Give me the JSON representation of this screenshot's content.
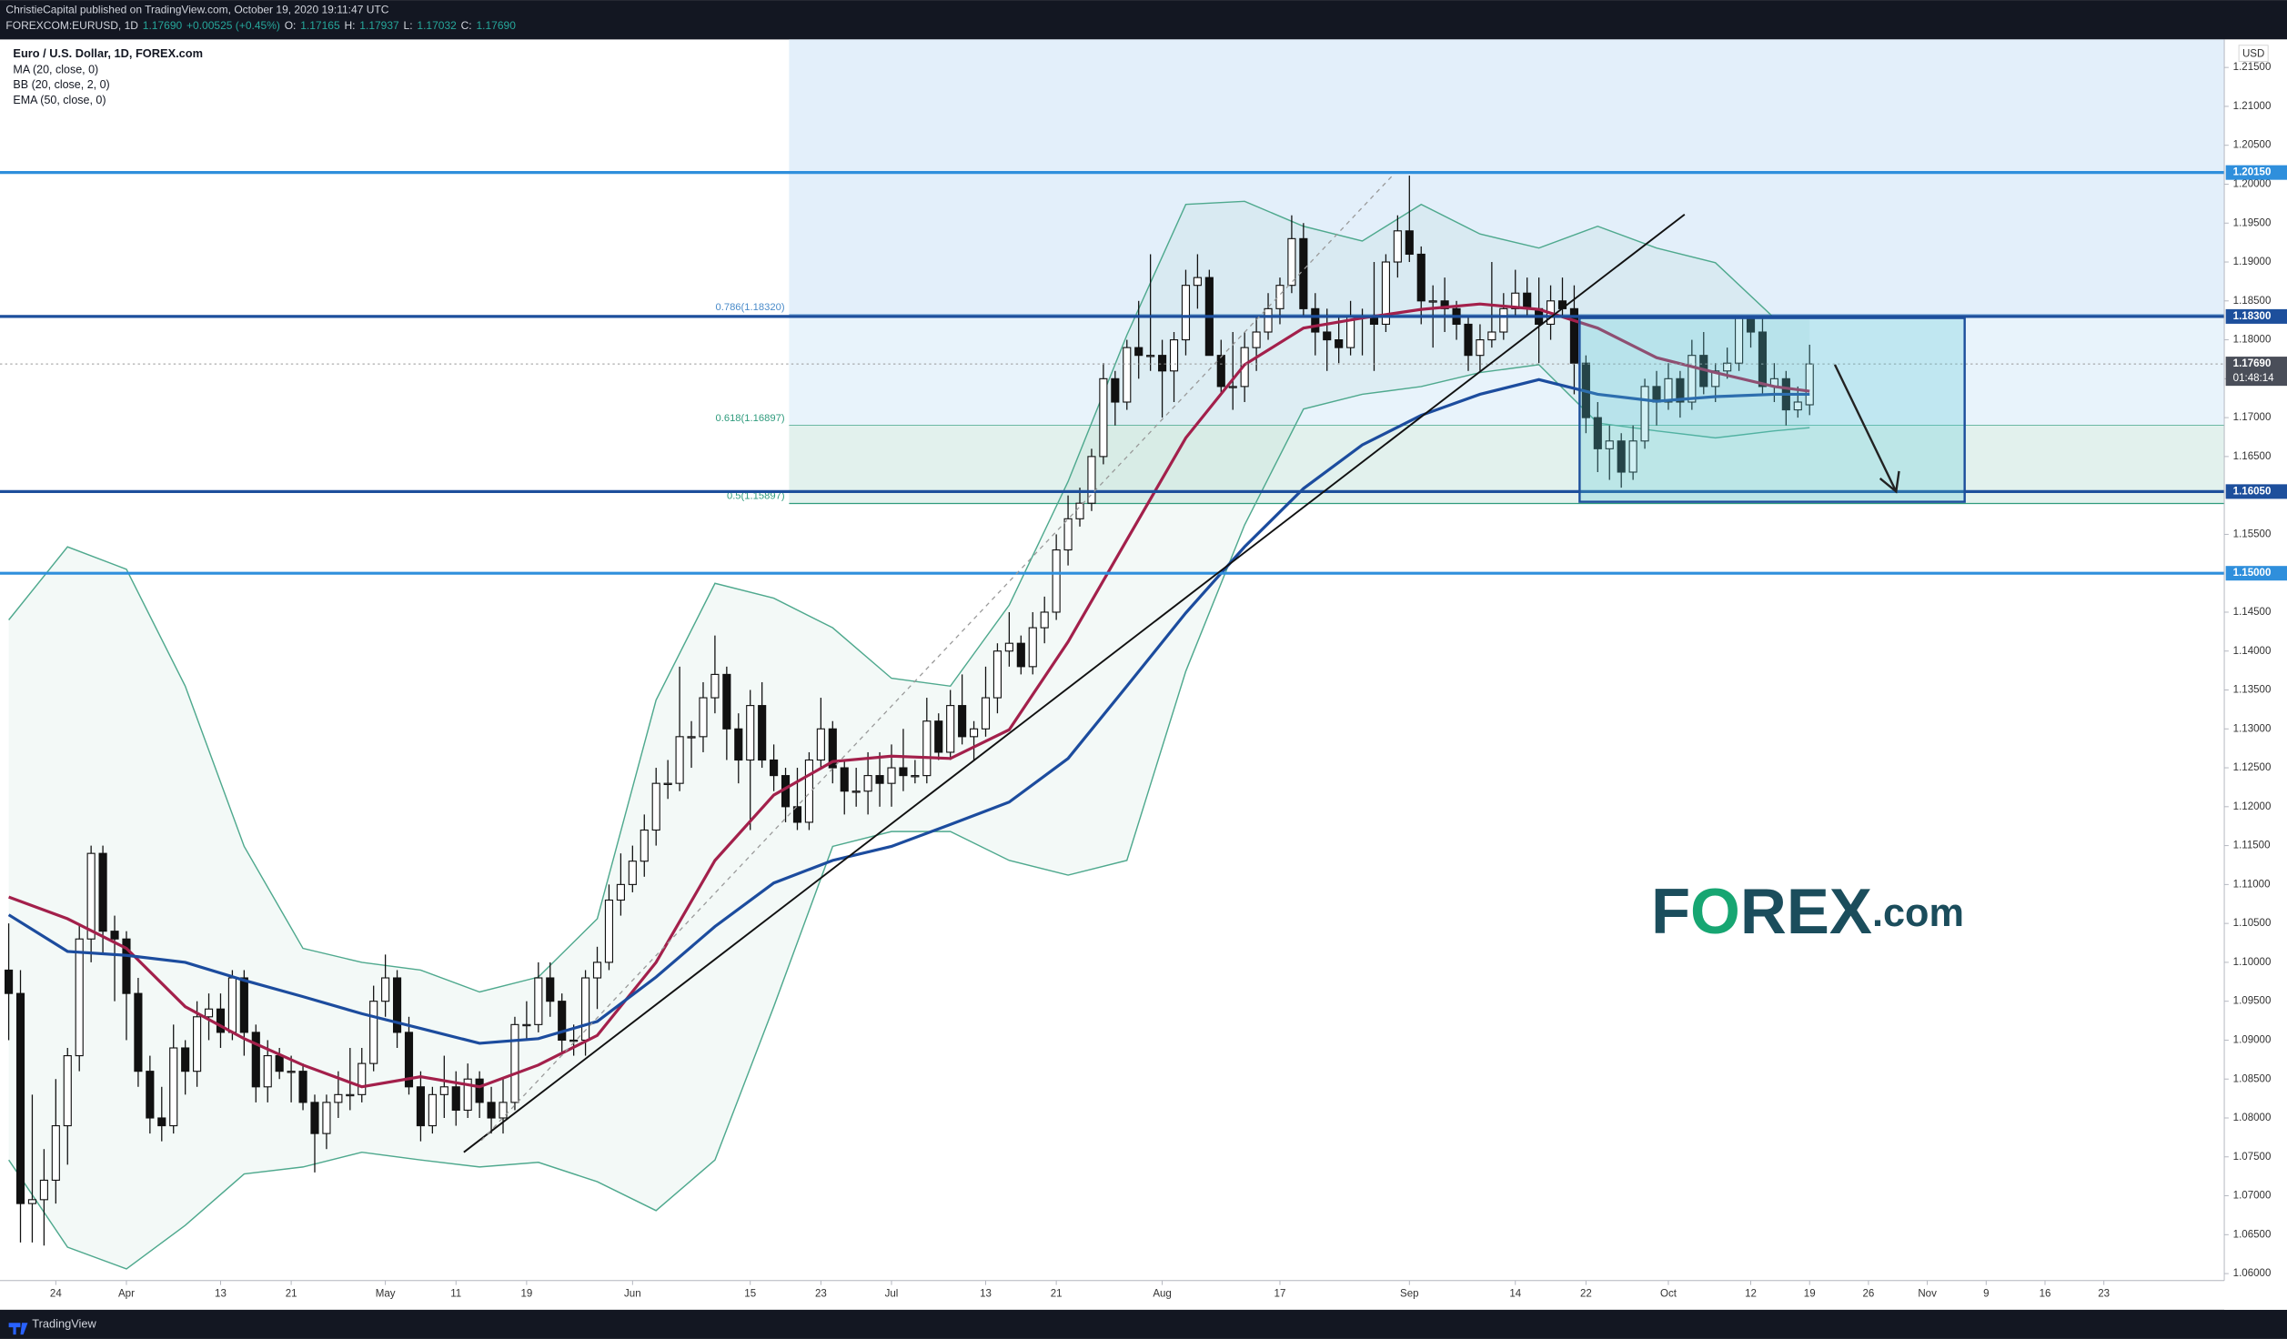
{
  "header": {
    "author": "ChristieCapital published on TradingView.com, October 19, 2020 19:11:47 UTC",
    "quote": [
      "FOREXCOM:EURUSD, 1D",
      "1.17690",
      "+0.00525 (+0.45%)",
      "O:",
      "1.17165",
      "H:",
      "1.17937",
      "L:",
      "1.17032",
      "C:",
      "1.17690"
    ]
  },
  "legend": {
    "instrument": "Euro / U.S. Dollar, 1D, FOREX.com"
  },
  "logo": [
    "F",
    "O",
    "REX",
    ".com"
  ],
  "footer": "TradingView",
  "chart_data": {
    "type": "candlestick",
    "currency": "USD",
    "xlim": [
      -0.74,
      188.23
    ],
    "ylim": [
      1.0591,
      1.2186
    ],
    "xticks": [
      {
        "value": 4,
        "label": "24"
      },
      {
        "value": 10,
        "label": "Apr"
      },
      {
        "value": 18,
        "label": "13"
      },
      {
        "value": 24,
        "label": "21"
      },
      {
        "value": 32,
        "label": "May"
      },
      {
        "value": 38,
        "label": "11"
      },
      {
        "value": 44,
        "label": "19"
      },
      {
        "value": 53,
        "label": "Jun"
      },
      {
        "value": 63,
        "label": "15"
      },
      {
        "value": 69,
        "label": "23"
      },
      {
        "value": 75,
        "label": "Jul"
      },
      {
        "value": 83,
        "label": "13"
      },
      {
        "value": 89,
        "label": "21"
      },
      {
        "value": 98,
        "label": "Aug"
      },
      {
        "value": 108,
        "label": "17"
      },
      {
        "value": 119,
        "label": "Sep"
      },
      {
        "value": 128,
        "label": "14"
      },
      {
        "value": 134,
        "label": "22"
      },
      {
        "value": 141,
        "label": "Oct"
      },
      {
        "value": 148,
        "label": "12"
      },
      {
        "value": 153,
        "label": "19"
      },
      {
        "value": 158,
        "label": "26"
      },
      {
        "value": 163,
        "label": "Nov"
      },
      {
        "value": 168,
        "label": "9"
      },
      {
        "value": 173,
        "label": "16"
      },
      {
        "value": 178,
        "label": "23"
      }
    ],
    "yticks": [
      {
        "value": 1.06,
        "label": "1.06000"
      },
      {
        "value": 1.065,
        "label": "1.06500"
      },
      {
        "value": 1.07,
        "label": "1.07000"
      },
      {
        "value": 1.075,
        "label": "1.07500"
      },
      {
        "value": 1.08,
        "label": "1.08000"
      },
      {
        "value": 1.085,
        "label": "1.08500"
      },
      {
        "value": 1.09,
        "label": "1.09000"
      },
      {
        "value": 1.095,
        "label": "1.09500"
      },
      {
        "value": 1.1,
        "label": "1.10000"
      },
      {
        "value": 1.105,
        "label": "1.10500"
      },
      {
        "value": 1.11,
        "label": "1.11000"
      },
      {
        "value": 1.115,
        "label": "1.11500"
      },
      {
        "value": 1.12,
        "label": "1.12000"
      },
      {
        "value": 1.125,
        "label": "1.12500"
      },
      {
        "value": 1.13,
        "label": "1.13000"
      },
      {
        "value": 1.135,
        "label": "1.13500"
      },
      {
        "value": 1.14,
        "label": "1.14000"
      },
      {
        "value": 1.145,
        "label": "1.14500"
      },
      {
        "value": 1.155,
        "label": "1.15500"
      },
      {
        "value": 1.165,
        "label": "1.16500"
      },
      {
        "value": 1.17,
        "label": "1.17000"
      },
      {
        "value": 1.175,
        "label": "1.17500"
      },
      {
        "value": 1.18,
        "label": "1.18000"
      },
      {
        "value": 1.185,
        "label": "1.18500"
      },
      {
        "value": 1.19,
        "label": "1.19000"
      },
      {
        "value": 1.195,
        "label": "1.19500"
      },
      {
        "value": 1.2,
        "label": "1.20000"
      },
      {
        "value": 1.205,
        "label": "1.20500"
      },
      {
        "value": 1.21,
        "label": "1.21000"
      },
      {
        "value": 1.215,
        "label": "1.21500"
      }
    ],
    "levels": [
      {
        "value": 1.2015,
        "label": "1.20150",
        "color": "#2f8fdc"
      },
      {
        "value": 1.183,
        "label": "1.18300",
        "color": "#1d4f9c"
      },
      {
        "value": 1.1605,
        "label": "1.16050",
        "color": "#1d4f9c"
      },
      {
        "value": 1.15,
        "label": "1.15000",
        "color": "#2f8fdc"
      }
    ],
    "last": {
      "value": 1.1769,
      "label": "1.17690",
      "countdown": "01:48:14"
    },
    "fib": [
      {
        "value": 1.1832,
        "label": "0.786(1.18320)",
        "color": "#4a8bc9",
        "fill": "#e3effa"
      },
      {
        "value": 1.16897,
        "label": "0.618(1.16897)",
        "color": "#2f9b7d",
        "fill": "#e8f3fb"
      },
      {
        "value": 1.15897,
        "label": "0.5(1.15897)",
        "color": "#2f9b7d",
        "fill": "#e2f1ed"
      }
    ],
    "up_color": "#ffffff",
    "down_color": "#111111",
    "overlay_x": [
      0,
      5,
      10,
      15,
      20,
      25,
      30,
      35,
      40,
      45,
      50,
      55,
      60,
      65,
      70,
      75,
      80,
      85,
      90,
      95,
      100,
      105,
      110,
      115,
      120,
      125,
      130,
      135,
      140,
      145,
      150,
      153
    ],
    "overlays": [
      {
        "name": "MA (20, close, 0)",
        "color": "#a3204b",
        "values": [
          1.1084,
          1.1056,
          1.1018,
          1.0943,
          1.0902,
          1.0868,
          1.084,
          1.0853,
          1.084,
          1.0868,
          1.0906,
          1.1,
          1.1131,
          1.1215,
          1.1258,
          1.1265,
          1.1262,
          1.1299,
          1.1412,
          1.1543,
          1.1674,
          1.1768,
          1.1815,
          1.1828,
          1.1839,
          1.1846,
          1.1839,
          1.1815,
          1.1777,
          1.1758,
          1.174,
          1.1734
        ]
      },
      {
        "name": "BB (20, close, 2, 0)",
        "color": "#4fa98e",
        "upper": [
          1.144,
          1.1534,
          1.1505,
          1.1355,
          1.1149,
          1.1018,
          1.1,
          1.099,
          1.0962,
          1.0981,
          1.1056,
          1.1337,
          1.1487,
          1.1468,
          1.143,
          1.1365,
          1.1355,
          1.1459,
          1.1618,
          1.1806,
          1.1974,
          1.1978,
          1.1946,
          1.1927,
          1.1974,
          1.1936,
          1.1918,
          1.1946,
          1.1918,
          1.1899,
          1.1828,
          1.1828
        ],
        "lower": [
          1.0746,
          1.0634,
          1.0606,
          1.0662,
          1.0728,
          1.0737,
          1.0756,
          1.0746,
          1.0737,
          1.0743,
          1.0718,
          1.0681,
          1.0746,
          1.0943,
          1.1149,
          1.1168,
          1.1168,
          1.1131,
          1.1112,
          1.1131,
          1.1374,
          1.1562,
          1.1711,
          1.173,
          1.174,
          1.1758,
          1.1768,
          1.1693,
          1.1683,
          1.1674,
          1.1683,
          1.1687
        ]
      },
      {
        "name": "EMA (50, close, 0)",
        "color": "#1c4c9e",
        "values": [
          1.1061,
          1.1014,
          1.1009,
          1.1,
          1.0977,
          1.0956,
          1.0934,
          1.0915,
          1.0896,
          1.0902,
          1.0924,
          1.0981,
          1.1046,
          1.1102,
          1.1131,
          1.1149,
          1.1177,
          1.1206,
          1.1262,
          1.1355,
          1.1449,
          1.1534,
          1.1609,
          1.1665,
          1.1703,
          1.173,
          1.1749,
          1.173,
          1.1721,
          1.1727,
          1.173,
          1.173
        ]
      }
    ],
    "candles": [
      [
        1.099,
        1.105,
        1.09,
        1.096
      ],
      [
        1.096,
        1.099,
        1.064,
        1.069
      ],
      [
        1.069,
        1.083,
        1.064,
        1.0695
      ],
      [
        1.0695,
        1.076,
        1.0636,
        1.072
      ],
      [
        1.072,
        1.085,
        1.069,
        1.079
      ],
      [
        1.079,
        1.089,
        1.074,
        1.088
      ],
      [
        1.088,
        1.105,
        1.086,
        1.103
      ],
      [
        1.103,
        1.115,
        1.1,
        1.114
      ],
      [
        1.114,
        1.115,
        1.101,
        1.104
      ],
      [
        1.104,
        1.106,
        1.095,
        1.103
      ],
      [
        1.103,
        1.104,
        1.09,
        1.096
      ],
      [
        1.096,
        1.098,
        1.084,
        1.086
      ],
      [
        1.086,
        1.088,
        1.078,
        1.08
      ],
      [
        1.08,
        1.084,
        1.077,
        1.079
      ],
      [
        1.079,
        1.092,
        1.078,
        1.089
      ],
      [
        1.089,
        1.09,
        1.083,
        1.086
      ],
      [
        1.086,
        1.095,
        1.084,
        1.093
      ],
      [
        1.093,
        1.096,
        1.09,
        1.094
      ],
      [
        1.094,
        1.096,
        1.089,
        1.091
      ],
      [
        1.091,
        1.099,
        1.09,
        1.098
      ],
      [
        1.098,
        1.099,
        1.088,
        1.091
      ],
      [
        1.091,
        1.092,
        1.082,
        1.084
      ],
      [
        1.084,
        1.09,
        1.082,
        1.088
      ],
      [
        1.088,
        1.089,
        1.085,
        1.086
      ],
      [
        1.086,
        1.088,
        1.082,
        1.086
      ],
      [
        1.086,
        1.087,
        1.081,
        1.082
      ],
      [
        1.082,
        1.083,
        1.073,
        1.078
      ],
      [
        1.078,
        1.083,
        1.076,
        1.082
      ],
      [
        1.082,
        1.086,
        1.08,
        1.083
      ],
      [
        1.083,
        1.089,
        1.081,
        1.083
      ],
      [
        1.083,
        1.089,
        1.082,
        1.087
      ],
      [
        1.087,
        1.097,
        1.086,
        1.095
      ],
      [
        1.095,
        1.101,
        1.093,
        1.098
      ],
      [
        1.098,
        1.099,
        1.089,
        1.091
      ],
      [
        1.091,
        1.093,
        1.083,
        1.084
      ],
      [
        1.084,
        1.086,
        1.077,
        1.079
      ],
      [
        1.079,
        1.084,
        1.078,
        1.083
      ],
      [
        1.083,
        1.088,
        1.08,
        1.084
      ],
      [
        1.084,
        1.086,
        1.079,
        1.081
      ],
      [
        1.081,
        1.087,
        1.08,
        1.085
      ],
      [
        1.085,
        1.086,
        1.08,
        1.082
      ],
      [
        1.082,
        1.084,
        1.078,
        1.08
      ],
      [
        1.08,
        1.085,
        1.078,
        1.082
      ],
      [
        1.082,
        1.093,
        1.081,
        1.092
      ],
      [
        1.092,
        1.095,
        1.09,
        1.092
      ],
      [
        1.092,
        1.1,
        1.091,
        1.098
      ],
      [
        1.098,
        1.1,
        1.093,
        1.095
      ],
      [
        1.095,
        1.096,
        1.088,
        1.09
      ],
      [
        1.09,
        1.092,
        1.088,
        1.09
      ],
      [
        1.09,
        1.099,
        1.088,
        1.098
      ],
      [
        1.098,
        1.102,
        1.094,
        1.1
      ],
      [
        1.1,
        1.11,
        1.099,
        1.108
      ],
      [
        1.108,
        1.114,
        1.106,
        1.11
      ],
      [
        1.11,
        1.115,
        1.109,
        1.113
      ],
      [
        1.113,
        1.119,
        1.111,
        1.117
      ],
      [
        1.117,
        1.125,
        1.115,
        1.123
      ],
      [
        1.123,
        1.126,
        1.121,
        1.123
      ],
      [
        1.123,
        1.138,
        1.122,
        1.129
      ],
      [
        1.129,
        1.131,
        1.125,
        1.129
      ],
      [
        1.129,
        1.136,
        1.127,
        1.134
      ],
      [
        1.134,
        1.142,
        1.132,
        1.137
      ],
      [
        1.137,
        1.138,
        1.126,
        1.13
      ],
      [
        1.13,
        1.132,
        1.123,
        1.126
      ],
      [
        1.126,
        1.135,
        1.117,
        1.133
      ],
      [
        1.133,
        1.136,
        1.125,
        1.126
      ],
      [
        1.126,
        1.128,
        1.122,
        1.124
      ],
      [
        1.124,
        1.125,
        1.118,
        1.12
      ],
      [
        1.12,
        1.125,
        1.117,
        1.118
      ],
      [
        1.118,
        1.127,
        1.117,
        1.126
      ],
      [
        1.126,
        1.134,
        1.125,
        1.13
      ],
      [
        1.13,
        1.131,
        1.123,
        1.125
      ],
      [
        1.125,
        1.126,
        1.119,
        1.122
      ],
      [
        1.122,
        1.125,
        1.12,
        1.122
      ],
      [
        1.122,
        1.127,
        1.119,
        1.124
      ],
      [
        1.124,
        1.127,
        1.12,
        1.123
      ],
      [
        1.123,
        1.128,
        1.12,
        1.125
      ],
      [
        1.125,
        1.13,
        1.122,
        1.124
      ],
      [
        1.124,
        1.126,
        1.123,
        1.124
      ],
      [
        1.124,
        1.134,
        1.123,
        1.131
      ],
      [
        1.131,
        1.132,
        1.126,
        1.127
      ],
      [
        1.127,
        1.135,
        1.126,
        1.133
      ],
      [
        1.133,
        1.137,
        1.128,
        1.129
      ],
      [
        1.129,
        1.131,
        1.126,
        1.13
      ],
      [
        1.13,
        1.138,
        1.129,
        1.134
      ],
      [
        1.134,
        1.141,
        1.132,
        1.14
      ],
      [
        1.14,
        1.145,
        1.138,
        1.141
      ],
      [
        1.141,
        1.142,
        1.137,
        1.138
      ],
      [
        1.138,
        1.145,
        1.137,
        1.143
      ],
      [
        1.143,
        1.147,
        1.141,
        1.145
      ],
      [
        1.145,
        1.155,
        1.144,
        1.153
      ],
      [
        1.153,
        1.16,
        1.151,
        1.157
      ],
      [
        1.157,
        1.161,
        1.156,
        1.159
      ],
      [
        1.159,
        1.166,
        1.158,
        1.165
      ],
      [
        1.165,
        1.177,
        1.164,
        1.175
      ],
      [
        1.175,
        1.176,
        1.169,
        1.172
      ],
      [
        1.172,
        1.18,
        1.171,
        1.179
      ],
      [
        1.179,
        1.185,
        1.175,
        1.178
      ],
      [
        1.178,
        1.191,
        1.176,
        1.178
      ],
      [
        1.178,
        1.18,
        1.17,
        1.176
      ],
      [
        1.176,
        1.181,
        1.172,
        1.18
      ],
      [
        1.18,
        1.189,
        1.178,
        1.187
      ],
      [
        1.187,
        1.191,
        1.184,
        1.188
      ],
      [
        1.188,
        1.189,
        1.178,
        1.178
      ],
      [
        1.178,
        1.18,
        1.173,
        1.174
      ],
      [
        1.174,
        1.181,
        1.171,
        1.174
      ],
      [
        1.174,
        1.181,
        1.172,
        1.179
      ],
      [
        1.179,
        1.183,
        1.176,
        1.181
      ],
      [
        1.181,
        1.186,
        1.18,
        1.184
      ],
      [
        1.184,
        1.188,
        1.182,
        1.187
      ],
      [
        1.187,
        1.196,
        1.186,
        1.193
      ],
      [
        1.193,
        1.195,
        1.183,
        1.184
      ],
      [
        1.184,
        1.186,
        1.178,
        1.181
      ],
      [
        1.181,
        1.184,
        1.176,
        1.18
      ],
      [
        1.18,
        1.183,
        1.177,
        1.179
      ],
      [
        1.179,
        1.185,
        1.178,
        1.183
      ],
      [
        1.183,
        1.184,
        1.178,
        1.183
      ],
      [
        1.183,
        1.19,
        1.176,
        1.182
      ],
      [
        1.182,
        1.191,
        1.181,
        1.19
      ],
      [
        1.19,
        1.196,
        1.188,
        1.194
      ],
      [
        1.194,
        1.2011,
        1.19,
        1.191
      ],
      [
        1.191,
        1.192,
        1.182,
        1.185
      ],
      [
        1.185,
        1.187,
        1.179,
        1.185
      ],
      [
        1.185,
        1.188,
        1.181,
        1.184
      ],
      [
        1.184,
        1.185,
        1.18,
        1.182
      ],
      [
        1.182,
        1.183,
        1.176,
        1.178
      ],
      [
        1.178,
        1.182,
        1.176,
        1.18
      ],
      [
        1.18,
        1.19,
        1.179,
        1.181
      ],
      [
        1.181,
        1.186,
        1.18,
        1.184
      ],
      [
        1.184,
        1.189,
        1.183,
        1.186
      ],
      [
        1.186,
        1.188,
        1.183,
        1.184
      ],
      [
        1.184,
        1.188,
        1.177,
        1.182
      ],
      [
        1.182,
        1.187,
        1.18,
        1.185
      ],
      [
        1.185,
        1.188,
        1.183,
        1.184
      ],
      [
        1.184,
        1.187,
        1.173,
        1.177
      ],
      [
        1.177,
        1.178,
        1.168,
        1.17
      ],
      [
        1.17,
        1.172,
        1.163,
        1.166
      ],
      [
        1.166,
        1.169,
        1.162,
        1.167
      ],
      [
        1.167,
        1.168,
        1.161,
        1.163
      ],
      [
        1.163,
        1.169,
        1.162,
        1.167
      ],
      [
        1.167,
        1.175,
        1.166,
        1.174
      ],
      [
        1.174,
        1.176,
        1.169,
        1.172
      ],
      [
        1.172,
        1.177,
        1.171,
        1.175
      ],
      [
        1.175,
        1.176,
        1.17,
        1.172
      ],
      [
        1.172,
        1.18,
        1.171,
        1.178
      ],
      [
        1.178,
        1.181,
        1.173,
        1.174
      ],
      [
        1.174,
        1.177,
        1.172,
        1.176
      ],
      [
        1.176,
        1.179,
        1.175,
        1.177
      ],
      [
        1.177,
        1.1831,
        1.176,
        1.183
      ],
      [
        1.183,
        1.1831,
        1.179,
        1.181
      ],
      [
        1.181,
        1.183,
        1.173,
        1.174
      ],
      [
        1.174,
        1.177,
        1.172,
        1.175
      ],
      [
        1.175,
        1.176,
        1.169,
        1.171
      ],
      [
        1.171,
        1.174,
        1.17,
        1.172
      ],
      [
        1.17165,
        1.17937,
        1.17032,
        1.1769
      ]
    ]
  }
}
